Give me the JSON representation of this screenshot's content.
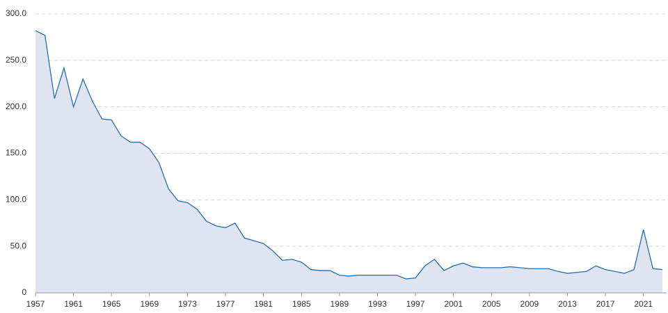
{
  "chart_data": {
    "type": "area",
    "x": [
      1957,
      1958,
      1959,
      1960,
      1961,
      1962,
      1963,
      1964,
      1965,
      1966,
      1967,
      1968,
      1969,
      1970,
      1971,
      1972,
      1973,
      1974,
      1975,
      1976,
      1977,
      1978,
      1979,
      1980,
      1981,
      1982,
      1983,
      1984,
      1985,
      1986,
      1987,
      1988,
      1989,
      1990,
      1991,
      1992,
      1993,
      1994,
      1995,
      1996,
      1997,
      1998,
      1999,
      2000,
      2001,
      2002,
      2003,
      2004,
      2005,
      2006,
      2007,
      2008,
      2009,
      2010,
      2011,
      2012,
      2013,
      2014,
      2015,
      2016,
      2017,
      2018,
      2019,
      2020,
      2021,
      2022,
      2023
    ],
    "values": [
      282,
      277,
      209,
      242,
      200,
      230,
      206,
      187,
      186,
      169,
      162,
      162,
      155,
      140,
      112,
      99,
      97,
      90,
      77,
      72,
      70,
      75,
      59,
      56,
      53,
      45,
      35,
      36,
      33,
      25,
      24,
      24,
      19,
      18,
      19,
      19,
      19,
      19,
      19,
      15,
      16,
      29,
      36,
      24,
      29,
      32,
      28,
      27,
      27,
      27,
      28,
      27,
      26,
      26,
      26,
      23,
      21,
      22,
      23,
      29,
      25,
      23,
      21,
      25,
      68,
      26,
      25
    ],
    "color": "#1f6fb5",
    "fill": "#dfe4f0",
    "xlim": [
      1957,
      2023
    ],
    "xticks": [
      1957,
      1961,
      1965,
      1969,
      1973,
      1977,
      1981,
      1985,
      1989,
      1993,
      1997,
      2001,
      2005,
      2009,
      2013,
      2017,
      2021
    ],
    "ylim": [
      0,
      300
    ],
    "yticks": [
      0,
      {
        "value": 50,
        "label": "50.0"
      },
      {
        "value": 100,
        "label": "100.0"
      },
      {
        "value": 150,
        "label": "150.0"
      },
      {
        "value": 200,
        "label": "200.0"
      },
      {
        "value": 250,
        "label": "250.0"
      },
      {
        "value": 300,
        "label": "300.0"
      }
    ],
    "grid": true
  }
}
